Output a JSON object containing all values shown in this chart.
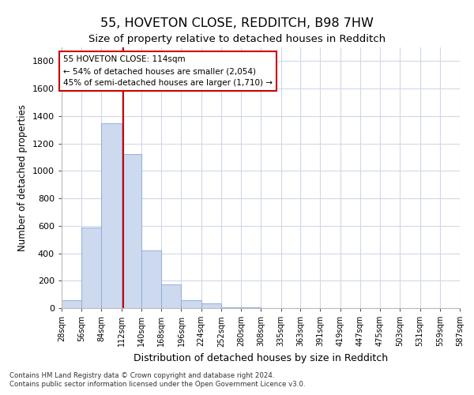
{
  "title1": "55, HOVETON CLOSE, REDDITCH, B98 7HW",
  "title2": "Size of property relative to detached houses in Redditch",
  "xlabel": "Distribution of detached houses by size in Redditch",
  "ylabel": "Number of detached properties",
  "bar_values": [
    60,
    590,
    1350,
    1120,
    420,
    170,
    60,
    35,
    5,
    5,
    0,
    0,
    0,
    0,
    0,
    0,
    0,
    0,
    0,
    0
  ],
  "bin_edges": [
    28,
    56,
    84,
    112,
    140,
    168,
    196,
    224,
    252,
    280,
    308,
    336,
    363,
    391,
    419,
    447,
    475,
    503,
    531,
    559,
    587
  ],
  "tick_labels": [
    "28sqm",
    "56sqm",
    "84sqm",
    "112sqm",
    "140sqm",
    "168sqm",
    "196sqm",
    "224sqm",
    "252sqm",
    "280sqm",
    "308sqm",
    "335sqm",
    "363sqm",
    "391sqm",
    "419sqm",
    "447sqm",
    "475sqm",
    "503sqm",
    "531sqm",
    "559sqm",
    "587sqm"
  ],
  "bar_color": "#ccd9ee",
  "bar_edge_color": "#89aad4",
  "grid_color": "#d0d8e8",
  "vline_x": 114,
  "vline_color": "#cc0000",
  "annotation_text": "55 HOVETON CLOSE: 114sqm\n← 54% of detached houses are smaller (2,054)\n45% of semi-detached houses are larger (1,710) →",
  "annotation_box_color": "#cc0000",
  "ylim": [
    0,
    1900
  ],
  "yticks": [
    0,
    200,
    400,
    600,
    800,
    1000,
    1200,
    1400,
    1600,
    1800
  ],
  "footnote1": "Contains HM Land Registry data © Crown copyright and database right 2024.",
  "footnote2": "Contains public sector information licensed under the Open Government Licence v3.0.",
  "title1_fontsize": 11.5,
  "title2_fontsize": 9.5,
  "xlabel_fontsize": 9,
  "ylabel_fontsize": 8.5,
  "annotation_fontsize": 7.5
}
